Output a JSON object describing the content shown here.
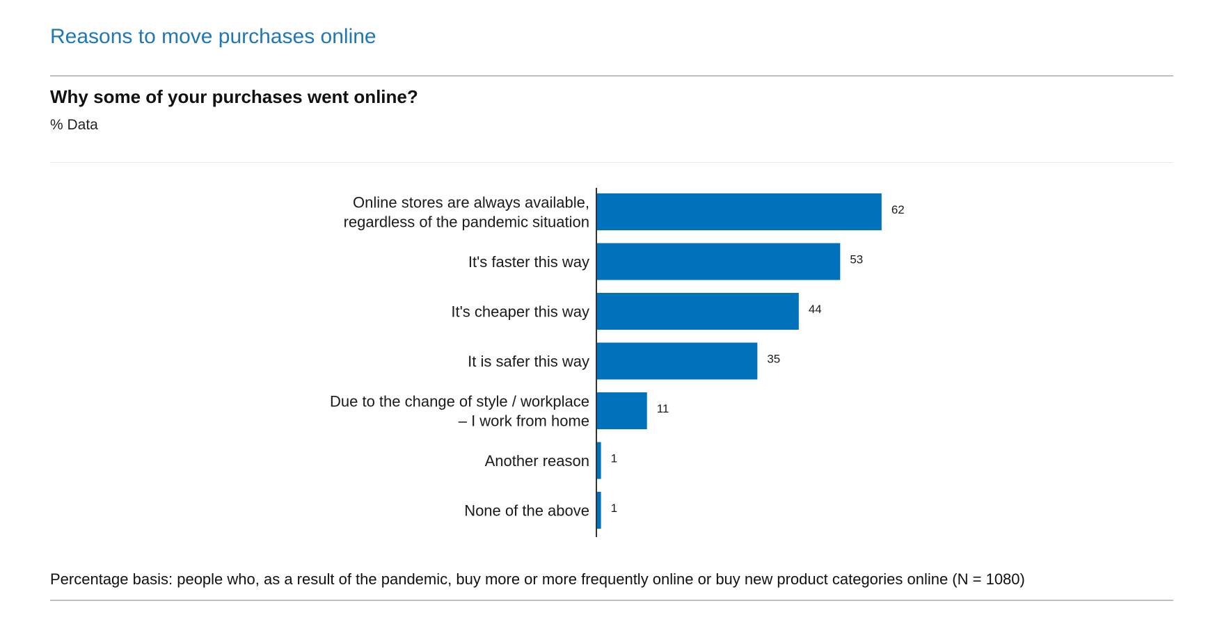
{
  "header": {
    "title": "Reasons to move purchases online",
    "question": "Why some of your purchases went online?",
    "unit": "% Data"
  },
  "footer": {
    "note": "Percentage basis: people who, as a result of the pandemic, buy more or more frequently online or buy new product categories online (N = 1080)"
  },
  "colors": {
    "title": "#1f78b4",
    "bar": "#0072bc",
    "axis": "#333333"
  },
  "chart_data": {
    "type": "bar",
    "orientation": "horizontal",
    "categories": [
      [
        "Online stores are always available,",
        "regardless of the pandemic situation"
      ],
      [
        "It's faster this way"
      ],
      [
        "It's cheaper this way"
      ],
      [
        "It is safer this way"
      ],
      [
        "Due to the change of style / workplace",
        "– I work from home"
      ],
      [
        "Another reason"
      ],
      [
        "None of the above"
      ]
    ],
    "values": [
      62,
      53,
      44,
      35,
      11,
      1,
      1
    ],
    "xlim": [
      0,
      100
    ],
    "grid": false,
    "legend": "none"
  }
}
